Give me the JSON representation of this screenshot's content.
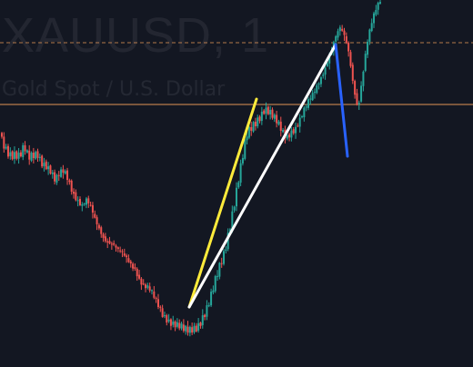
{
  "watermark": {
    "symbol": "XAUUSD, 1",
    "description": "Gold Spot / U.S. Dollar"
  },
  "colors": {
    "background": "#131722",
    "up_candle": "#26a69a",
    "down_candle": "#ef5350",
    "price_line_dashed": "#f7a35c",
    "price_line_solid": "#f7a35c",
    "trendline_yellow": "#ffeb3b",
    "trendline_white": "#ffffff",
    "trendline_blue": "#2962ff"
  },
  "chart_data": {
    "type": "candlestick",
    "symbol": "XAUUSD",
    "timeframe": "1",
    "description": "Gold Spot / U.S. Dollar",
    "price_axis": "hidden",
    "time_axis": "hidden",
    "grid": false,
    "horizontal_levels": [
      {
        "style": "dashed",
        "relative_level": 0.88
      },
      {
        "style": "solid",
        "relative_level": 0.715
      }
    ],
    "close_path_relative": [
      0.63,
      0.61,
      0.6,
      0.6,
      0.59,
      0.61,
      0.58,
      0.59,
      0.6,
      0.58,
      0.57,
      0.55,
      0.52,
      0.54,
      0.55,
      0.53,
      0.5,
      0.48,
      0.46,
      0.47,
      0.45,
      0.42,
      0.4,
      0.38,
      0.37,
      0.36,
      0.34,
      0.33,
      0.32,
      0.31,
      0.3,
      0.27,
      0.25,
      0.24,
      0.22,
      0.2,
      0.18,
      0.17,
      0.16,
      0.15,
      0.14,
      0.13,
      0.13,
      0.14,
      0.15,
      0.17,
      0.19,
      0.22,
      0.26,
      0.3,
      0.34,
      0.4,
      0.46,
      0.52,
      0.58,
      0.64,
      0.66,
      0.68,
      0.7,
      0.72,
      0.71,
      0.69,
      0.67,
      0.65,
      0.64,
      0.66,
      0.67,
      0.69,
      0.71,
      0.73,
      0.75,
      0.78,
      0.81,
      0.84,
      0.87,
      0.9,
      0.92,
      0.9,
      0.86,
      0.78,
      0.72,
      0.8,
      0.88,
      0.93,
      0.97,
      1.0
    ],
    "trendlines": [
      {
        "color": "yellow",
        "from": "swing-low",
        "to": "first-rally-high"
      },
      {
        "color": "white",
        "from": "swing-low",
        "to": "higher-high"
      },
      {
        "color": "blue",
        "from": "higher-high",
        "to": "pullback-low"
      }
    ]
  }
}
